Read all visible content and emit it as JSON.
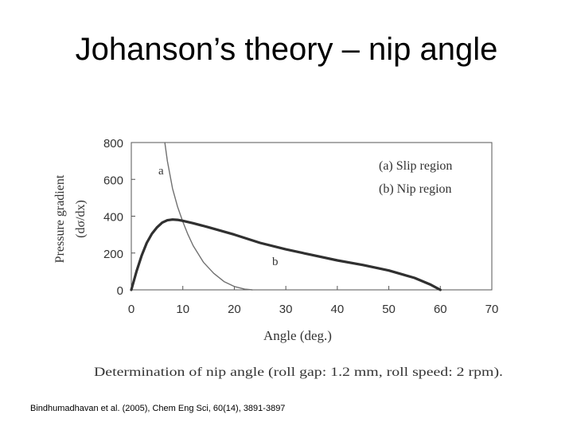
{
  "slide": {
    "title": "Johanson’s theory – nip angle",
    "citation": "Bindhumadhavan et al. (2005), Chem Eng Sci, 60(14), 3891-3897"
  },
  "chart_data": {
    "type": "line",
    "title": "",
    "caption": "Determination of nip angle (roll gap: 1.2 mm, roll speed: 2 rpm).",
    "xlabel": "Angle (deg.)",
    "ylabel_line1": "Pressure gradient",
    "ylabel_line2": "(dσ/dx)",
    "xlim": [
      0,
      70
    ],
    "ylim": [
      0,
      800
    ],
    "x_ticks": [
      "0",
      "10",
      "20",
      "30",
      "40",
      "50",
      "60",
      "70"
    ],
    "y_ticks": [
      "0",
      "200",
      "400",
      "600",
      "800"
    ],
    "grid": false,
    "legend_position": "top-right",
    "legend": [
      "(a)  Slip region",
      "(b)  Nip region"
    ],
    "series": [
      {
        "name": "a",
        "color": "#707070",
        "x": [
          6.5,
          7,
          8,
          9,
          10,
          11,
          12,
          14,
          16,
          18,
          20,
          22,
          23.5
        ],
        "y": [
          800,
          700,
          550,
          450,
          370,
          300,
          240,
          150,
          90,
          45,
          18,
          4,
          0
        ]
      },
      {
        "name": "b",
        "color": "#303030",
        "x": [
          0,
          1,
          2,
          3,
          4,
          5,
          6,
          7,
          8,
          9,
          10,
          12,
          15,
          20,
          25,
          30,
          35,
          40,
          45,
          50,
          55,
          58,
          60
        ],
        "y": [
          0,
          100,
          185,
          255,
          305,
          340,
          365,
          378,
          382,
          380,
          375,
          362,
          340,
          300,
          255,
          220,
          190,
          160,
          135,
          105,
          65,
          30,
          0
        ]
      }
    ]
  }
}
